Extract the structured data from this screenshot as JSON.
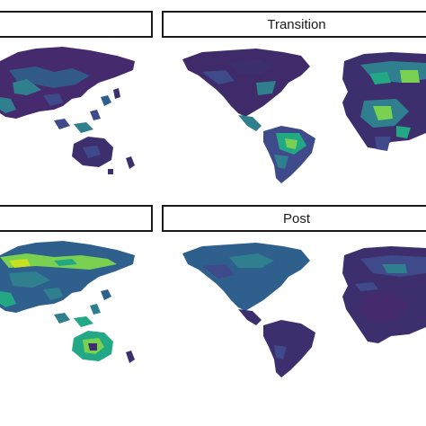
{
  "panels": {
    "top_left": {
      "strip_label": ""
    },
    "top_right": {
      "strip_label": "Transition"
    },
    "bottom_left": {
      "strip_label": ""
    },
    "bottom_right": {
      "strip_label": "Post"
    }
  },
  "colors": {
    "ocean": "#ffffff",
    "low": "#3b1a5c",
    "mid_low": "#3f4a8a",
    "mid": "#2f7f8e",
    "mid_high": "#22a884",
    "high": "#7ad151",
    "peak": "#c8e020",
    "strip_border": "#1a1a1a"
  }
}
